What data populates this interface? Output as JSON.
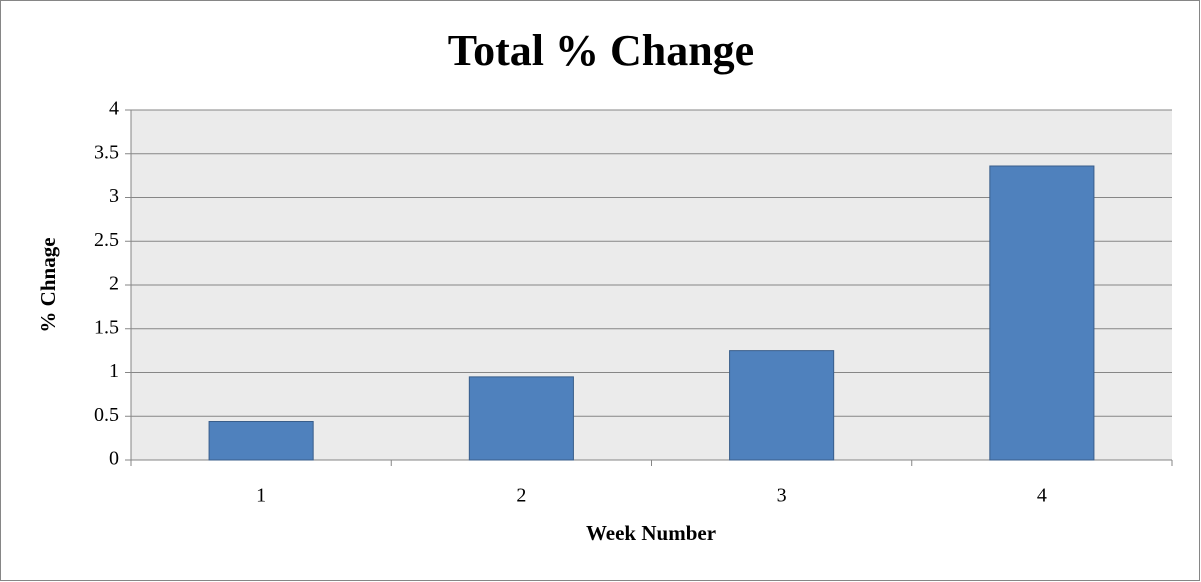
{
  "chart_data": {
    "type": "bar",
    "title": "Total % Change",
    "x_label": "Week Number",
    "y_label": "% Chnage",
    "categories": [
      "1",
      "2",
      "3",
      "4"
    ],
    "values": [
      0.44,
      0.95,
      1.25,
      3.36
    ],
    "color": "#4f81bd",
    "ylim": [
      0,
      4
    ],
    "yticks": [
      0,
      0.5,
      1,
      1.5,
      2,
      2.5,
      3,
      3.5,
      4
    ],
    "grid": true
  }
}
